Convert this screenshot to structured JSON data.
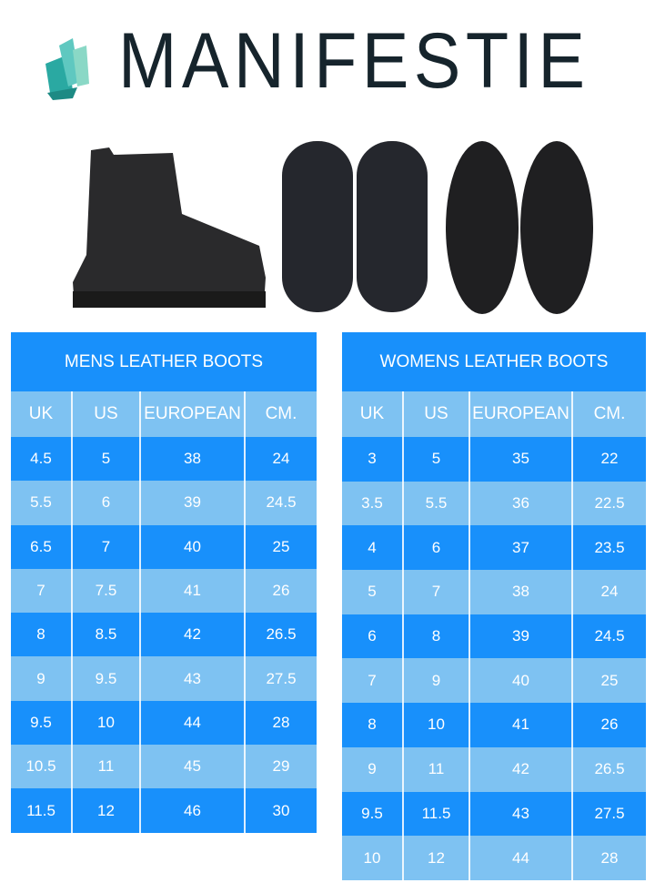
{
  "brand": {
    "name": "MANIFESTIE",
    "icon": "crystal-logo-icon",
    "colors": {
      "crystal": "#2fb3ad",
      "text": "#16242c"
    }
  },
  "colors": {
    "dark_row": "#1890fb",
    "light_row": "#7ec2f2"
  },
  "tables": [
    {
      "title": "MENS LEATHER BOOTS",
      "headers": [
        "UK",
        "US",
        "EUROPEAN",
        "CM."
      ],
      "rows": [
        [
          "4.5",
          "5",
          "38",
          "24"
        ],
        [
          "5.5",
          "6",
          "39",
          "24.5"
        ],
        [
          "6.5",
          "7",
          "40",
          "25"
        ],
        [
          "7",
          "7.5",
          "41",
          "26"
        ],
        [
          "8",
          "8.5",
          "42",
          "26.5"
        ],
        [
          "9",
          "9.5",
          "43",
          "27.5"
        ],
        [
          "9.5",
          "10",
          "44",
          "28"
        ],
        [
          "10.5",
          "11",
          "45",
          "29"
        ],
        [
          "11.5",
          "12",
          "46",
          "30"
        ]
      ]
    },
    {
      "title": "WOMENS LEATHER BOOTS",
      "headers": [
        "UK",
        "US",
        "EUROPEAN",
        "CM."
      ],
      "rows": [
        [
          "3",
          "5",
          "35",
          "22"
        ],
        [
          "3.5",
          "5.5",
          "36",
          "22.5"
        ],
        [
          "4",
          "6",
          "37",
          "23.5"
        ],
        [
          "5",
          "7",
          "38",
          "24"
        ],
        [
          "6",
          "8",
          "39",
          "24.5"
        ],
        [
          "7",
          "9",
          "40",
          "25"
        ],
        [
          "8",
          "10",
          "41",
          "26"
        ],
        [
          "9",
          "11",
          "42",
          "26.5"
        ],
        [
          "9.5",
          "11.5",
          "43",
          "27.5"
        ],
        [
          "10",
          "12",
          "44",
          "28"
        ]
      ]
    }
  ]
}
